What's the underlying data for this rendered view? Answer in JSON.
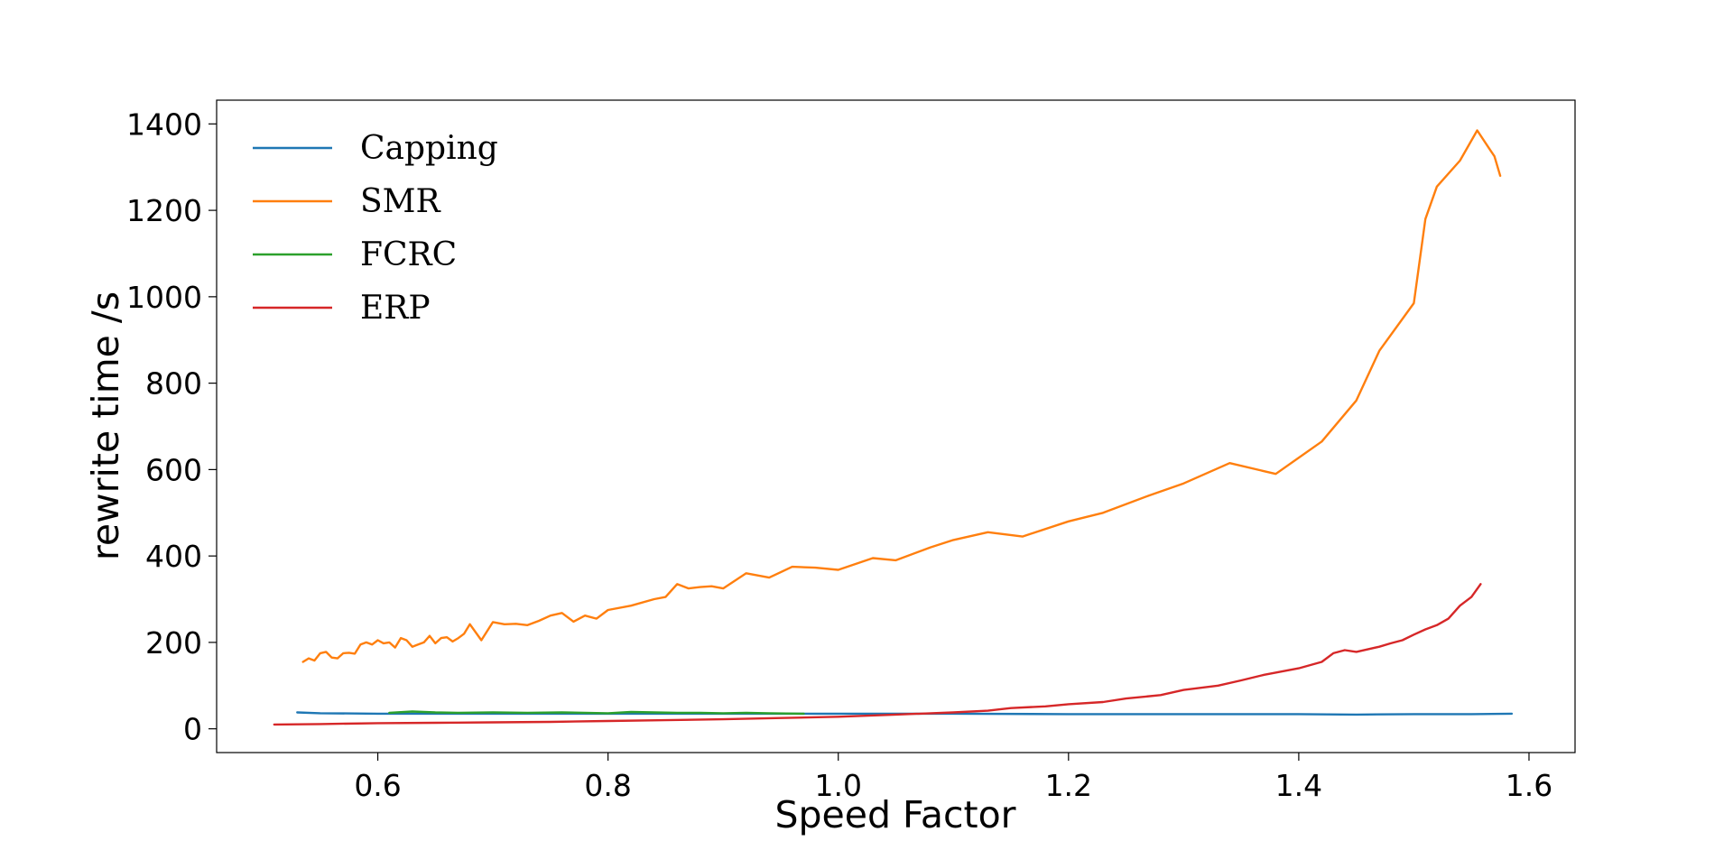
{
  "chart_data": {
    "type": "line",
    "xlabel": "Speed Factor",
    "ylabel": "rewrite time /s",
    "xlim": [
      0.46,
      1.64
    ],
    "ylim": [
      -55,
      1455
    ],
    "xticks": [
      0.6,
      0.8,
      1.0,
      1.2,
      1.4,
      1.6
    ],
    "xtick_labels": [
      "0.6",
      "0.8",
      "1.0",
      "1.2",
      "1.4",
      "1.6"
    ],
    "yticks": [
      0,
      200,
      400,
      600,
      800,
      1000,
      1200,
      1400
    ],
    "ytick_labels": [
      "0",
      "200",
      "400",
      "600",
      "800",
      "1000",
      "1200",
      "1400"
    ],
    "legend_position": "top-left",
    "grid": false,
    "series": [
      {
        "name": "Capping",
        "color": "#1f77b4",
        "x": [
          0.53,
          0.55,
          0.6,
          0.65,
          0.7,
          0.8,
          0.9,
          1.0,
          1.1,
          1.2,
          1.3,
          1.4,
          1.45,
          1.5,
          1.55,
          1.585
        ],
        "y": [
          38,
          36,
          35,
          35,
          35,
          35,
          35,
          35,
          35,
          34,
          34,
          34,
          33,
          34,
          34,
          35
        ]
      },
      {
        "name": "SMR",
        "color": "#ff7f0e",
        "x": [
          0.535,
          0.54,
          0.545,
          0.55,
          0.555,
          0.56,
          0.565,
          0.57,
          0.575,
          0.58,
          0.585,
          0.59,
          0.595,
          0.6,
          0.605,
          0.61,
          0.615,
          0.62,
          0.625,
          0.63,
          0.635,
          0.64,
          0.645,
          0.65,
          0.655,
          0.66,
          0.665,
          0.67,
          0.675,
          0.68,
          0.69,
          0.7,
          0.71,
          0.72,
          0.73,
          0.74,
          0.75,
          0.76,
          0.77,
          0.78,
          0.79,
          0.8,
          0.82,
          0.84,
          0.85,
          0.86,
          0.87,
          0.88,
          0.89,
          0.9,
          0.92,
          0.94,
          0.96,
          0.98,
          1.0,
          1.03,
          1.05,
          1.08,
          1.1,
          1.13,
          1.16,
          1.2,
          1.23,
          1.27,
          1.3,
          1.34,
          1.38,
          1.42,
          1.45,
          1.47,
          1.5,
          1.51,
          1.52,
          1.54,
          1.555,
          1.565,
          1.57,
          1.575
        ],
        "y": [
          155,
          163,
          158,
          175,
          178,
          165,
          163,
          175,
          176,
          174,
          195,
          200,
          195,
          205,
          198,
          200,
          188,
          210,
          205,
          190,
          195,
          200,
          215,
          198,
          210,
          212,
          202,
          210,
          220,
          242,
          205,
          247,
          242,
          243,
          240,
          250,
          262,
          268,
          248,
          262,
          255,
          275,
          285,
          300,
          305,
          335,
          325,
          328,
          330,
          325,
          360,
          350,
          375,
          373,
          368,
          395,
          390,
          420,
          437,
          455,
          445,
          480,
          500,
          540,
          568,
          615,
          590,
          665,
          760,
          875,
          985,
          1180,
          1255,
          1315,
          1385,
          1345,
          1325,
          1280
        ]
      },
      {
        "name": "FCRC",
        "color": "#2ca02c",
        "x": [
          0.61,
          0.63,
          0.65,
          0.67,
          0.7,
          0.73,
          0.76,
          0.8,
          0.82,
          0.84,
          0.86,
          0.88,
          0.9,
          0.92,
          0.94,
          0.97
        ],
        "y": [
          37,
          40,
          38,
          37,
          38,
          37,
          38,
          36,
          39,
          38,
          37,
          37,
          36,
          37,
          36,
          35
        ]
      },
      {
        "name": "ERP",
        "color": "#d62728",
        "x": [
          0.51,
          0.55,
          0.6,
          0.65,
          0.7,
          0.75,
          0.8,
          0.85,
          0.9,
          0.95,
          1.0,
          1.05,
          1.1,
          1.13,
          1.15,
          1.18,
          1.2,
          1.23,
          1.25,
          1.28,
          1.3,
          1.33,
          1.35,
          1.37,
          1.4,
          1.42,
          1.43,
          1.44,
          1.45,
          1.47,
          1.48,
          1.49,
          1.5,
          1.51,
          1.52,
          1.53,
          1.54,
          1.55,
          1.558
        ],
        "y": [
          10,
          11,
          13,
          14,
          15,
          16,
          18,
          20,
          22,
          25,
          28,
          33,
          38,
          42,
          48,
          52,
          57,
          62,
          70,
          78,
          90,
          100,
          112,
          125,
          140,
          155,
          175,
          182,
          178,
          190,
          198,
          205,
          218,
          230,
          240,
          255,
          285,
          305,
          335
        ]
      }
    ]
  }
}
